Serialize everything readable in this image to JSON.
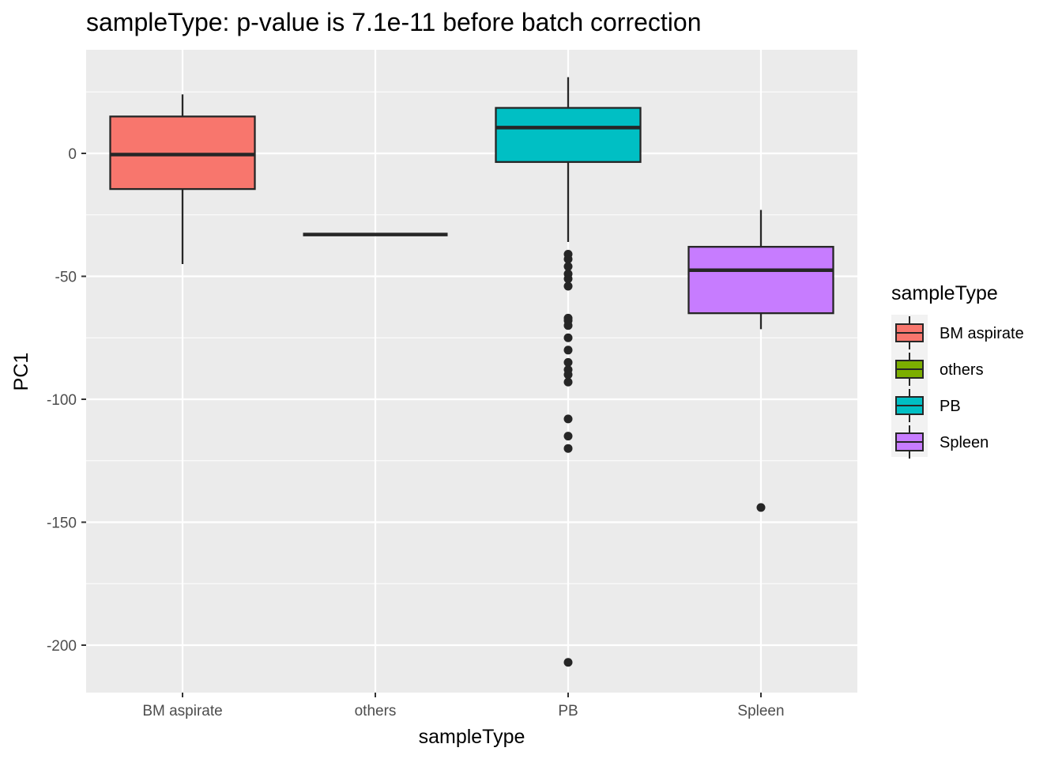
{
  "chart_data": {
    "type": "box",
    "title": "sampleType: p-value is 7.1e-11 before batch correction",
    "xlabel": "sampleType",
    "ylabel": "PC1",
    "categories": [
      "BM aspirate",
      "others",
      "PB",
      "Spleen"
    ],
    "ylim": [
      -219,
      43
    ],
    "yticks": [
      0,
      -50,
      -100,
      -150,
      -200
    ],
    "ytick_labels": [
      "0",
      "-50",
      "-100",
      "-150",
      "-200"
    ],
    "grid": true,
    "legend": {
      "title": "sampleType",
      "position": "right",
      "entries": [
        "BM aspirate",
        "others",
        "PB",
        "Spleen"
      ]
    },
    "boxes": [
      {
        "category": "BM aspirate",
        "whisker_low": -45,
        "q1": -14.5,
        "median": -0.5,
        "q3": 15,
        "whisker_high": 24,
        "outliers": [],
        "color": "#F8766D"
      },
      {
        "category": "others",
        "whisker_low": -33,
        "q1": -33,
        "median": -33,
        "q3": -33,
        "whisker_high": -33,
        "outliers": [],
        "color": "#7CAE00"
      },
      {
        "category": "PB",
        "whisker_low": -36,
        "q1": -3.5,
        "median": 10.5,
        "q3": 18.5,
        "whisker_high": 31,
        "outliers": [
          -41,
          -43,
          -46,
          -49,
          -51,
          -54,
          -67,
          -68,
          -70,
          -75,
          -80,
          -85,
          -88,
          -90,
          -93,
          -108,
          -115,
          -120,
          -207
        ],
        "color": "#00BFC4"
      },
      {
        "category": "Spleen",
        "whisker_low": -71.5,
        "q1": -65,
        "median": -47.5,
        "q3": -38,
        "whisker_high": -23,
        "outliers": [
          -144
        ],
        "color": "#C77CFF"
      }
    ]
  }
}
